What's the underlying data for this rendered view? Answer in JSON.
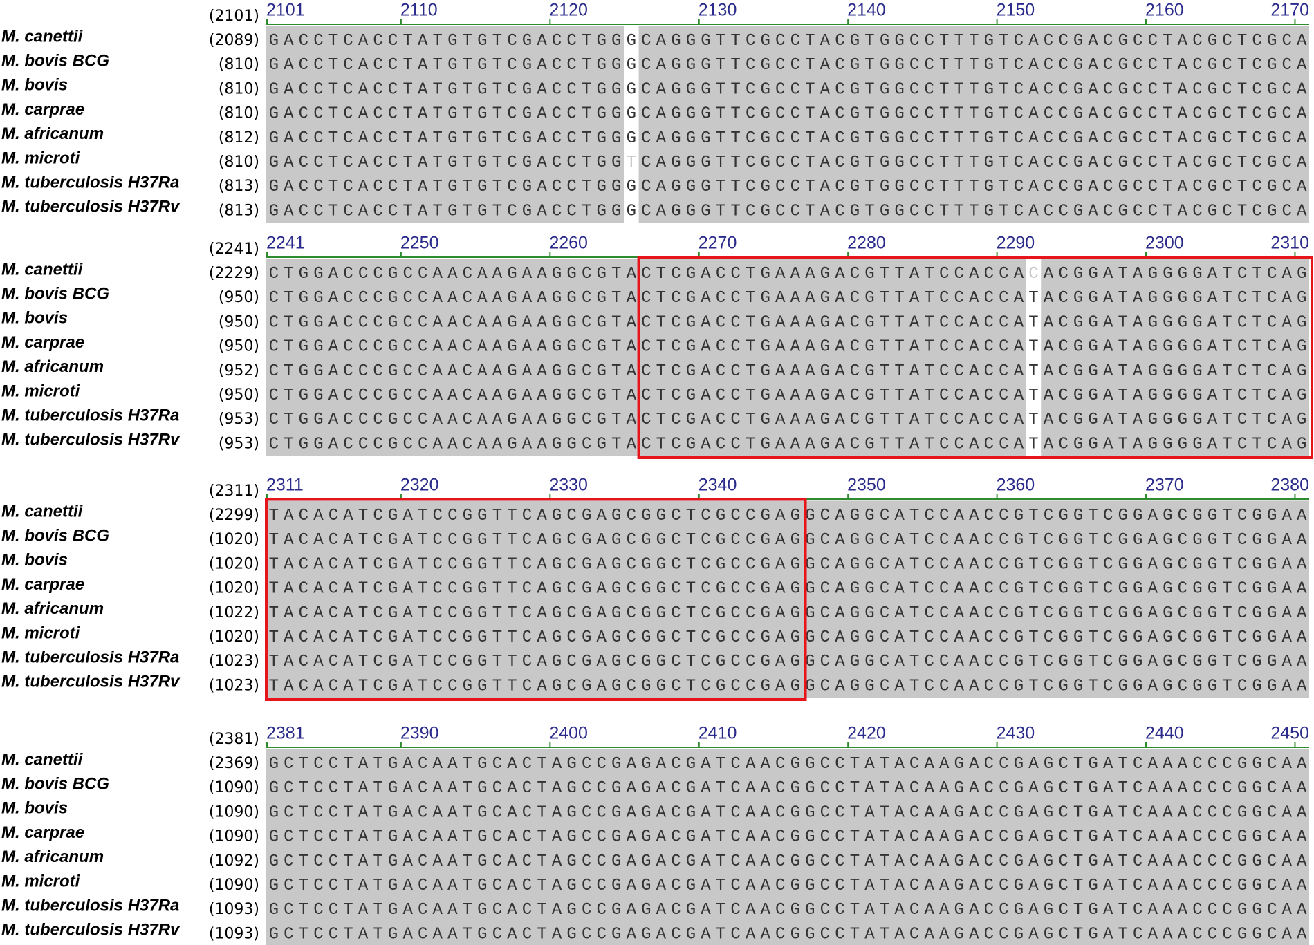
{
  "blocks": [
    {
      "header": "(2101)",
      "ruler": [
        2101,
        2110,
        2120,
        2130,
        2140,
        2150,
        2160,
        2170
      ],
      "unshaded_position": 2125,
      "rows": [
        {
          "name": "M. canettii",
          "start": "(2089)",
          "sequence": "GACCTCACCTATGTGTCGACCTGGGCAGGGTTCGCCTACGTGGCCTTTGTCACCGACGCCTACGCTCGCA"
        },
        {
          "name": "M. bovis BCG",
          "start": "(810)",
          "sequence": "GACCTCACCTATGTGTCGACCTGGGCAGGGTTCGCCTACGTGGCCTTTGTCACCGACGCCTACGCTCGCA"
        },
        {
          "name": "M. bovis",
          "start": "(810)",
          "sequence": "GACCTCACCTATGTGTCGACCTGGGCAGGGTTCGCCTACGTGGCCTTTGTCACCGACGCCTACGCTCGCA"
        },
        {
          "name": "M. carprae",
          "start": "(810)",
          "sequence": "GACCTCACCTATGTGTCGACCTGGGCAGGGTTCGCCTACGTGGCCTTTGTCACCGACGCCTACGCTCGCA"
        },
        {
          "name": "M. africanum",
          "start": "(812)",
          "sequence": "GACCTCACCTATGTGTCGACCTGGGCAGGGTTCGCCTACGTGGCCTTTGTCACCGACGCCTACGCTCGCA"
        },
        {
          "name": "M. microti",
          "start": "(810)",
          "sequence": "GACCTCACCTATGTGTCGACCTGGTCAGGGTTCGCCTACGTGGCCTTTGTCACCGACGCCTACGCTCGCA"
        },
        {
          "name": "M. tuberculosis H37Ra",
          "start": "(813)",
          "sequence": "GACCTCACCTATGTGTCGACCTGGGCAGGGTTCGCCTACGTGGCCTTTGTCACCGACGCCTACGCTCGCA"
        },
        {
          "name": "M. tuberculosis H37Rv",
          "start": "(813)",
          "sequence": "GACCTCACCTATGTGTCGACCTGGGCAGGGTTCGCCTACGTGGCCTTTGTCACCGACGCCTACGCTCGCA"
        }
      ]
    },
    {
      "header": "(2241)",
      "ruler": [
        2241,
        2250,
        2260,
        2270,
        2280,
        2290,
        2300,
        2310
      ],
      "unshaded_position": 2292,
      "boxed_range": [
        2266,
        2310
      ],
      "rows": [
        {
          "name": "M. canettii",
          "start": "(2229)",
          "sequence": "CTGGACCCGCCAACAAGAAGGCGTACTCGACCTGAAAGACGTTATCCACCACACGGATAGGGGATCTCAG"
        },
        {
          "name": "M. bovis BCG",
          "start": "(950)",
          "sequence": "CTGGACCCGCCAACAAGAAGGCGTACTCGACCTGAAAGACGTTATCCACCATACGGATAGGGGATCTCAG"
        },
        {
          "name": "M. bovis",
          "start": "(950)",
          "sequence": "CTGGACCCGCCAACAAGAAGGCGTACTCGACCTGAAAGACGTTATCCACCATACGGATAGGGGATCTCAG"
        },
        {
          "name": "M. carprae",
          "start": "(950)",
          "sequence": "CTGGACCCGCCAACAAGAAGGCGTACTCGACCTGAAAGACGTTATCCACCATACGGATAGGGGATCTCAG"
        },
        {
          "name": "M. africanum",
          "start": "(952)",
          "sequence": "CTGGACCCGCCAACAAGAAGGCGTACTCGACCTGAAAGACGTTATCCACCATACGGATAGGGGATCTCAG"
        },
        {
          "name": "M. microti",
          "start": "(950)",
          "sequence": "CTGGACCCGCCAACAAGAAGGCGTACTCGACCTGAAAGACGTTATCCACCATACGGATAGGGGATCTCAG"
        },
        {
          "name": "M. tuberculosis H37Ra",
          "start": "(953)",
          "sequence": "CTGGACCCGCCAACAAGAAGGCGTACTCGACCTGAAAGACGTTATCCACCATACGGATAGGGGATCTCAG"
        },
        {
          "name": "M. tuberculosis H37Rv",
          "start": "(953)",
          "sequence": "CTGGACCCGCCAACAAGAAGGCGTACTCGACCTGAAAGACGTTATCCACCATACGGATAGGGGATCTCAG"
        }
      ]
    },
    {
      "header": "(2311)",
      "ruler": [
        2311,
        2320,
        2330,
        2340,
        2350,
        2360,
        2370,
        2380
      ],
      "boxed_range": [
        2311,
        2346
      ],
      "rows": [
        {
          "name": "M. canettii",
          "start": "(2299)",
          "sequence": "TACACATCGATCCGGTTCAGCGAGCGGCTCGCCGAGGCAGGCATCCAACCGTCGGTCGGAGCGGTCGGAA"
        },
        {
          "name": "M. bovis BCG",
          "start": "(1020)",
          "sequence": "TACACATCGATCCGGTTCAGCGAGCGGCTCGCCGAGGCAGGCATCCAACCGTCGGTCGGAGCGGTCGGAA"
        },
        {
          "name": "M. bovis",
          "start": "(1020)",
          "sequence": "TACACATCGATCCGGTTCAGCGAGCGGCTCGCCGAGGCAGGCATCCAACCGTCGGTCGGAGCGGTCGGAA"
        },
        {
          "name": "M. carprae",
          "start": "(1020)",
          "sequence": "TACACATCGATCCGGTTCAGCGAGCGGCTCGCCGAGGCAGGCATCCAACCGTCGGTCGGAGCGGTCGGAA"
        },
        {
          "name": "M. africanum",
          "start": "(1022)",
          "sequence": "TACACATCGATCCGGTTCAGCGAGCGGCTCGCCGAGGCAGGCATCCAACCGTCGGTCGGAGCGGTCGGAA"
        },
        {
          "name": "M. microti",
          "start": "(1020)",
          "sequence": "TACACATCGATCCGGTTCAGCGAGCGGCTCGCCGAGGCAGGCATCCAACCGTCGGTCGGAGCGGTCGGAA"
        },
        {
          "name": "M. tuberculosis H37Ra",
          "start": "(1023)",
          "sequence": "TACACATCGATCCGGTTCAGCGAGCGGCTCGCCGAGGCAGGCATCCAACCGTCGGTCGGAGCGGTCGGAA"
        },
        {
          "name": "M. tuberculosis H37Rv",
          "start": "(1023)",
          "sequence": "TACACATCGATCCGGTTCAGCGAGCGGCTCGCCGAGGCAGGCATCCAACCGTCGGTCGGAGCGGTCGGAA"
        }
      ]
    },
    {
      "header": "(2381)",
      "ruler": [
        2381,
        2390,
        2400,
        2410,
        2420,
        2430,
        2440,
        2450
      ],
      "rows": [
        {
          "name": "M. canettii",
          "start": "(2369)",
          "sequence": "GCTCCTATGACAATGCACTAGCCGAGACGATCAACGGCCTATACAAGACCGAGCTGATCAAACCCGGCAA"
        },
        {
          "name": "M. bovis BCG",
          "start": "(1090)",
          "sequence": "GCTCCTATGACAATGCACTAGCCGAGACGATCAACGGCCTATACAAGACCGAGCTGATCAAACCCGGCAA"
        },
        {
          "name": "M. bovis",
          "start": "(1090)",
          "sequence": "GCTCCTATGACAATGCACTAGCCGAGACGATCAACGGCCTATACAAGACCGAGCTGATCAAACCCGGCAA"
        },
        {
          "name": "M. carprae",
          "start": "(1090)",
          "sequence": "GCTCCTATGACAATGCACTAGCCGAGACGATCAACGGCCTATACAAGACCGAGCTGATCAAACCCGGCAA"
        },
        {
          "name": "M. africanum",
          "start": "(1092)",
          "sequence": "GCTCCTATGACAATGCACTAGCCGAGACGATCAACGGCCTATACAAGACCGAGCTGATCAAACCCGGCAA"
        },
        {
          "name": "M. microti",
          "start": "(1090)",
          "sequence": "GCTCCTATGACAATGCACTAGCCGAGACGATCAACGGCCTATACAAGACCGAGCTGATCAAACCCGGCAA"
        },
        {
          "name": "M. tuberculosis H37Ra",
          "start": "(1093)",
          "sequence": "GCTCCTATGACAATGCACTAGCCGAGACGATCAACGGCCTATACAAGACCGAGCTGATCAAACCCGGCAA"
        },
        {
          "name": "M. tuberculosis H37Rv",
          "start": "(1093)",
          "sequence": "GCTCCTATGACAATGCACTAGCCGAGACGATCAACGGCCTATACAAGACCGAGCTGATCAAACCCGGCAA"
        }
      ]
    }
  ]
}
